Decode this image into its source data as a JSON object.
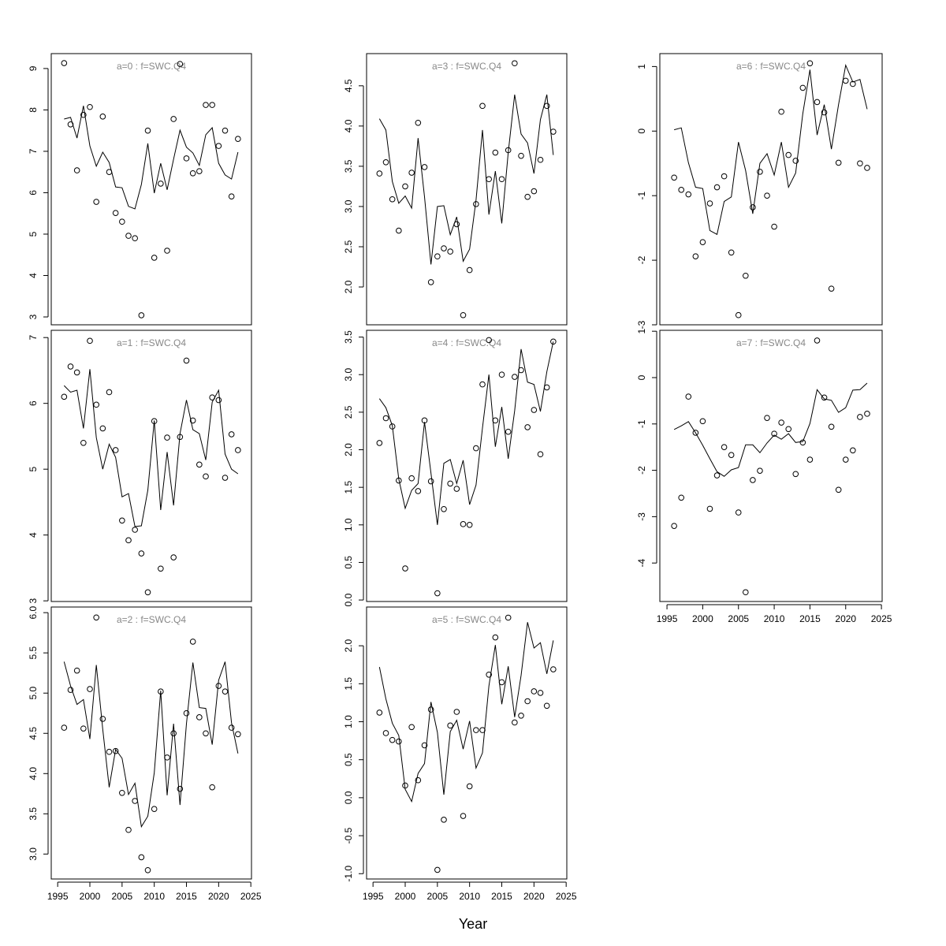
{
  "xlabel": "Year",
  "chart_data": [
    {
      "type": "line",
      "title": "a=0 : f=SWC.Q4",
      "x": [
        1996,
        1997,
        1998,
        1999,
        2000,
        2001,
        2002,
        2003,
        2004,
        2005,
        2006,
        2007,
        2008,
        2009,
        2010,
        2011,
        2012,
        2013,
        2014,
        2015,
        2016,
        2017,
        2018,
        2019,
        2020,
        2021,
        2022,
        2023
      ],
      "series": [
        {
          "style": "points",
          "color": "#000000",
          "values": [
            9.13,
            7.65,
            6.54,
            7.88,
            8.07,
            5.78,
            7.84,
            6.5,
            5.51,
            5.3,
            4.96,
            4.9,
            3.04,
            7.5,
            4.43,
            6.22,
            4.6,
            7.78,
            9.11,
            6.83,
            6.47,
            6.52,
            8.12,
            8.12,
            7.13,
            7.5,
            5.91,
            7.3
          ]
        },
        {
          "style": "line",
          "color": "#000000",
          "values": [
            7.78,
            7.82,
            7.32,
            8.1,
            7.13,
            6.64,
            6.98,
            6.73,
            6.14,
            6.12,
            5.67,
            5.61,
            6.2,
            7.19,
            5.99,
            6.71,
            6.07,
            6.81,
            7.51,
            7.1,
            6.96,
            6.66,
            7.4,
            7.57,
            6.71,
            6.43,
            6.33,
            6.98
          ]
        }
      ],
      "xlim": [
        1994.0,
        2025.1
      ],
      "ylim": [
        2.81,
        9.36
      ],
      "yticks": [
        3,
        4,
        5,
        6,
        7,
        8,
        9
      ]
    },
    {
      "type": "line",
      "title": "a=1 : f=SWC.Q4",
      "x": [
        1996,
        1997,
        1998,
        1999,
        2000,
        2001,
        2002,
        2003,
        2004,
        2005,
        2006,
        2007,
        2008,
        2009,
        2010,
        2011,
        2012,
        2013,
        2014,
        2015,
        2016,
        2017,
        2018,
        2019,
        2020,
        2021,
        2022,
        2023
      ],
      "series": [
        {
          "style": "points",
          "color": "#000000",
          "values": [
            6.1,
            6.56,
            6.47,
            5.4,
            6.95,
            5.98,
            5.62,
            6.17,
            5.29,
            4.22,
            3.92,
            4.08,
            3.72,
            3.13,
            5.73,
            3.49,
            5.48,
            3.66,
            5.49,
            6.65,
            5.74,
            5.07,
            4.89,
            6.09,
            6.05,
            4.87,
            5.53,
            5.29
          ]
        },
        {
          "style": "line",
          "color": "#000000",
          "values": [
            6.27,
            6.17,
            6.2,
            5.62,
            6.52,
            5.48,
            5.0,
            5.38,
            5.18,
            4.58,
            4.63,
            4.13,
            4.14,
            4.68,
            5.74,
            4.38,
            5.26,
            4.45,
            5.54,
            6.05,
            5.6,
            5.54,
            5.14,
            6.02,
            6.2,
            5.23,
            5.0,
            4.93
          ]
        }
      ],
      "xlim": [
        1994.0,
        2025.1
      ],
      "ylim": [
        2.99,
        7.11
      ],
      "yticks": [
        3,
        4,
        5,
        6,
        7
      ]
    },
    {
      "type": "line",
      "title": "a=2 : f=SWC.Q4",
      "x": [
        1996,
        1997,
        1998,
        1999,
        2000,
        2001,
        2002,
        2003,
        2004,
        2005,
        2006,
        2007,
        2008,
        2009,
        2010,
        2011,
        2012,
        2013,
        2014,
        2015,
        2016,
        2017,
        2018,
        2019,
        2020,
        2021,
        2022,
        2023
      ],
      "series": [
        {
          "style": "points",
          "color": "#000000",
          "values": [
            4.57,
            5.04,
            5.28,
            4.56,
            5.05,
            5.94,
            4.68,
            4.27,
            4.28,
            3.76,
            3.3,
            3.66,
            2.96,
            2.8,
            3.56,
            5.02,
            4.2,
            4.5,
            3.81,
            4.75,
            5.64,
            4.7,
            4.5,
            3.83,
            5.09,
            5.02,
            4.57,
            4.49
          ]
        },
        {
          "style": "line",
          "color": "#000000",
          "values": [
            5.39,
            5.09,
            4.86,
            4.92,
            4.43,
            5.35,
            4.55,
            3.83,
            4.3,
            4.19,
            3.74,
            3.88,
            3.34,
            3.47,
            4.01,
            5.03,
            3.73,
            4.62,
            3.61,
            4.62,
            5.38,
            4.82,
            4.81,
            4.36,
            5.16,
            5.39,
            4.63,
            4.25
          ]
        }
      ],
      "xlim": [
        1994.0,
        2025.1
      ],
      "ylim": [
        2.69,
        6.07
      ],
      "yticks": [
        {
          "value": 3,
          "label": "3.0"
        },
        3.5,
        {
          "value": 4,
          "label": "4.0"
        },
        4.5,
        {
          "value": 5,
          "label": "5.0"
        },
        5.5,
        {
          "value": 6,
          "label": "6.0"
        }
      ],
      "xticks": [
        1995,
        2000,
        2005,
        2010,
        2015,
        2020,
        2025
      ]
    },
    {
      "type": "line",
      "title": "a=3 : f=SWC.Q4",
      "x": [
        1996,
        1997,
        1998,
        1999,
        2000,
        2001,
        2002,
        2003,
        2004,
        2005,
        2006,
        2007,
        2008,
        2009,
        2010,
        2011,
        2012,
        2013,
        2014,
        2015,
        2016,
        2017,
        2018,
        2019,
        2020,
        2021,
        2022,
        2023
      ],
      "series": [
        {
          "style": "points",
          "color": "#000000",
          "values": [
            3.41,
            3.55,
            3.09,
            2.7,
            3.25,
            3.42,
            4.04,
            3.49,
            2.06,
            2.38,
            2.48,
            2.44,
            2.78,
            1.65,
            2.21,
            3.03,
            4.25,
            3.34,
            3.67,
            3.34,
            3.7,
            4.78,
            3.63,
            3.12,
            3.19,
            3.58,
            4.25,
            3.93
          ]
        },
        {
          "style": "line",
          "color": "#000000",
          "values": [
            4.09,
            3.95,
            3.31,
            3.04,
            3.13,
            2.98,
            3.85,
            3.12,
            2.28,
            3.0,
            3.01,
            2.65,
            2.87,
            2.32,
            2.47,
            3.08,
            3.95,
            2.9,
            3.44,
            2.79,
            3.67,
            4.39,
            3.9,
            3.79,
            3.41,
            4.08,
            4.39,
            3.64
          ]
        }
      ],
      "xlim": [
        1994.0,
        2025.1
      ],
      "ylim": [
        1.53,
        4.9
      ],
      "yticks": [
        {
          "value": 2,
          "label": "2.0"
        },
        2.5,
        {
          "value": 3,
          "label": "3.0"
        },
        3.5,
        {
          "value": 4,
          "label": "4.0"
        },
        4.5
      ]
    },
    {
      "type": "line",
      "title": "a=4 : f=SWC.Q4",
      "x": [
        1996,
        1997,
        1998,
        1999,
        2000,
        2001,
        2002,
        2003,
        2004,
        2005,
        2006,
        2007,
        2008,
        2009,
        2010,
        2011,
        2012,
        2013,
        2014,
        2015,
        2016,
        2017,
        2018,
        2019,
        2020,
        2021,
        2022,
        2023
      ],
      "series": [
        {
          "style": "points",
          "color": "#000000",
          "values": [
            2.09,
            2.42,
            2.31,
            1.59,
            0.42,
            1.62,
            1.45,
            2.39,
            1.58,
            0.09,
            1.21,
            1.55,
            1.48,
            1.01,
            1.0,
            2.02,
            2.87,
            3.46,
            2.39,
            3.0,
            2.24,
            2.97,
            3.06,
            2.3,
            2.53,
            1.94,
            2.83,
            3.44
          ]
        },
        {
          "style": "line",
          "color": "#000000",
          "values": [
            2.68,
            2.56,
            2.32,
            1.61,
            1.22,
            1.46,
            1.55,
            2.37,
            1.69,
            1.0,
            1.82,
            1.87,
            1.55,
            1.86,
            1.27,
            1.53,
            2.29,
            3.0,
            2.04,
            2.57,
            1.88,
            2.52,
            3.34,
            2.9,
            2.87,
            2.51,
            3.04,
            3.44
          ]
        }
      ],
      "xlim": [
        1994.0,
        2025.1
      ],
      "ylim": [
        -0.02,
        3.59
      ],
      "yticks": [
        {
          "value": 0,
          "label": "0.0"
        },
        0.5,
        {
          "value": 1,
          "label": "1.0"
        },
        1.5,
        {
          "value": 2,
          "label": "2.0"
        },
        2.5,
        {
          "value": 3,
          "label": "3.0"
        },
        3.5
      ]
    },
    {
      "type": "line",
      "title": "a=5 : f=SWC.Q4",
      "x": [
        1996,
        1997,
        1998,
        1999,
        2000,
        2001,
        2002,
        2003,
        2004,
        2005,
        2006,
        2007,
        2008,
        2009,
        2010,
        2011,
        2012,
        2013,
        2014,
        2015,
        2016,
        2017,
        2018,
        2019,
        2020,
        2021,
        2022,
        2023
      ],
      "series": [
        {
          "style": "points",
          "color": "#000000",
          "values": [
            1.12,
            0.85,
            0.76,
            0.74,
            0.16,
            0.93,
            0.23,
            0.69,
            1.16,
            -0.95,
            -0.29,
            0.95,
            1.13,
            -0.24,
            0.15,
            0.89,
            0.89,
            1.62,
            2.11,
            1.52,
            2.37,
            0.99,
            1.08,
            1.27,
            1.4,
            1.38,
            1.21,
            1.69
          ]
        },
        {
          "style": "line",
          "color": "#000000",
          "values": [
            1.72,
            1.3,
            0.98,
            0.82,
            0.11,
            -0.05,
            0.32,
            0.45,
            1.26,
            0.86,
            0.04,
            0.87,
            1.02,
            0.64,
            1.01,
            0.39,
            0.59,
            1.47,
            2.01,
            1.23,
            1.73,
            1.06,
            1.61,
            2.31,
            1.97,
            2.04,
            1.63,
            2.07
          ]
        }
      ],
      "xlim": [
        1994.0,
        2025.1
      ],
      "ylim": [
        -1.07,
        2.51
      ],
      "yticks": [
        {
          "value": -1,
          "label": "-1.0"
        },
        -0.5,
        {
          "value": 0,
          "label": "0.0"
        },
        0.5,
        {
          "value": 1,
          "label": "1.0"
        },
        1.5,
        {
          "value": 2,
          "label": "2.0"
        }
      ],
      "xticks": [
        1995,
        2000,
        2005,
        2010,
        2015,
        2020,
        2025
      ]
    },
    {
      "type": "line",
      "title": "a=6 : f=SWC.Q4",
      "x": [
        1996,
        1997,
        1998,
        1999,
        2000,
        2001,
        2002,
        2003,
        2004,
        2005,
        2006,
        2007,
        2008,
        2009,
        2010,
        2011,
        2012,
        2013,
        2014,
        2015,
        2016,
        2017,
        2018,
        2019,
        2020,
        2021,
        2022,
        2023
      ],
      "series": [
        {
          "style": "points",
          "color": "#000000",
          "values": [
            -0.72,
            -0.91,
            -0.98,
            -1.94,
            -1.72,
            -1.12,
            -0.87,
            -0.7,
            -1.88,
            -2.85,
            -2.24,
            -1.18,
            -0.63,
            -1.0,
            -1.48,
            0.3,
            -0.37,
            -0.46,
            0.67,
            1.05,
            0.45,
            0.29,
            -2.44,
            -0.49,
            0.78,
            0.73,
            -0.5,
            -0.57
          ]
        },
        {
          "style": "line",
          "color": "#000000",
          "values": [
            0.02,
            0.05,
            -0.49,
            -0.87,
            -0.89,
            -1.54,
            -1.6,
            -1.09,
            -1.02,
            -0.17,
            -0.61,
            -1.28,
            -0.5,
            -0.35,
            -0.68,
            -0.17,
            -0.87,
            -0.65,
            0.27,
            0.95,
            -0.06,
            0.41,
            -0.28,
            0.41,
            1.02,
            0.76,
            0.8,
            0.34
          ]
        }
      ],
      "xlim": [
        1994.0,
        2025.1
      ],
      "ylim": [
        -3.0,
        1.2
      ],
      "yticks": [
        -3,
        -2,
        -1,
        0,
        1
      ]
    },
    {
      "type": "line",
      "title": "a=7 : f=SWC.Q4",
      "x": [
        1996,
        1997,
        1998,
        1999,
        2000,
        2001,
        2002,
        2003,
        2004,
        2005,
        2006,
        2007,
        2008,
        2009,
        2010,
        2011,
        2012,
        2013,
        2014,
        2015,
        2016,
        2017,
        2018,
        2019,
        2020,
        2021,
        2022,
        2023
      ],
      "series": [
        {
          "style": "points",
          "color": "#000000",
          "values": [
            -3.2,
            -2.59,
            -0.41,
            -1.19,
            -0.94,
            -2.83,
            -2.11,
            -1.5,
            -1.67,
            -2.91,
            -4.63,
            -2.21,
            -2.01,
            -0.87,
            -1.21,
            -0.97,
            -1.11,
            -2.08,
            -1.4,
            -1.77,
            0.8,
            -0.43,
            -1.06,
            -2.42,
            -1.77,
            -1.57,
            -0.85,
            -0.78
          ]
        },
        {
          "style": "line",
          "color": "#000000",
          "values": [
            -1.12,
            -1.04,
            -0.95,
            -1.19,
            -1.46,
            -1.75,
            -2.03,
            -2.13,
            -1.99,
            -1.94,
            -1.45,
            -1.45,
            -1.62,
            -1.41,
            -1.24,
            -1.33,
            -1.21,
            -1.4,
            -1.38,
            -0.99,
            -0.26,
            -0.46,
            -0.49,
            -0.75,
            -0.65,
            -0.27,
            -0.26,
            -0.12
          ]
        }
      ],
      "xlim": [
        1994.0,
        2025.1
      ],
      "ylim": [
        -4.83,
        1.02
      ],
      "yticks": [
        -4,
        -3,
        -2,
        -1,
        0,
        1
      ],
      "xticks": [
        1995,
        2000,
        2005,
        2010,
        2015,
        2020,
        2025
      ]
    }
  ]
}
